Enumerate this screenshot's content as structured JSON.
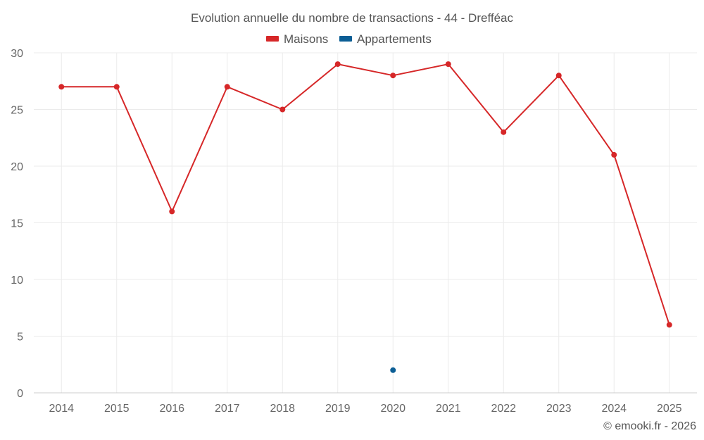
{
  "chart_data": {
    "type": "line",
    "title": "Evolution annuelle du nombre de transactions - 44 - Drefféac",
    "categories": [
      "2014",
      "2015",
      "2016",
      "2017",
      "2018",
      "2019",
      "2020",
      "2021",
      "2022",
      "2023",
      "2024",
      "2025"
    ],
    "series": [
      {
        "name": "Maisons",
        "color": "#d62728",
        "values": [
          27,
          27,
          16,
          27,
          25,
          29,
          28,
          29,
          23,
          28,
          21,
          6
        ]
      },
      {
        "name": "Appartements",
        "color": "#0b5e95",
        "values": [
          null,
          null,
          null,
          null,
          null,
          null,
          2,
          null,
          null,
          null,
          null,
          null
        ]
      }
    ],
    "ylim": [
      0,
      30
    ],
    "yticks": [
      "0",
      "5",
      "10",
      "15",
      "20",
      "25",
      "30"
    ],
    "xlabel": "",
    "ylabel": "",
    "grid": true,
    "legend": "top-center"
  },
  "credit": "© emooki.fr - 2026"
}
